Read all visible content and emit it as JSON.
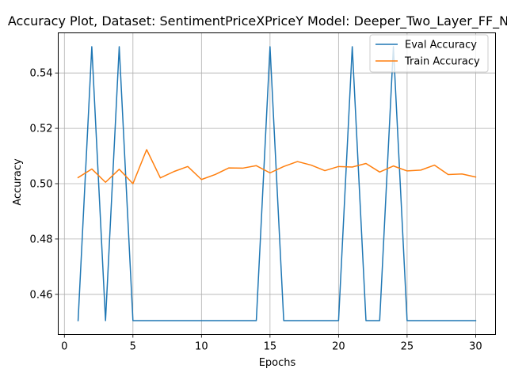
{
  "chart_data": {
    "type": "line",
    "title": "Accuracy Plot, Dataset: SentimentPriceXPriceY Model: Deeper_Two_Layer_FF_NN",
    "xlabel": "Epochs",
    "ylabel": "Accuracy",
    "xlim": [
      -0.45,
      31.45
    ],
    "ylim": [
      0.4455,
      0.5545
    ],
    "xticks": [
      0,
      5,
      10,
      15,
      20,
      25,
      30
    ],
    "yticks": [
      0.46,
      0.48,
      0.5,
      0.52,
      0.54
    ],
    "ytick_labels": [
      "0.46",
      "0.48",
      "0.50",
      "0.52",
      "0.54"
    ],
    "grid": true,
    "legend_position": "top-right",
    "x": [
      1,
      2,
      3,
      4,
      5,
      6,
      7,
      8,
      9,
      10,
      11,
      12,
      13,
      14,
      15,
      16,
      17,
      18,
      19,
      20,
      21,
      22,
      23,
      24,
      25,
      26,
      27,
      28,
      29,
      30
    ],
    "series": [
      {
        "name": "Eval Accuracy",
        "color": "#1f77b4",
        "values": [
          0.4505,
          0.5495,
          0.4505,
          0.5495,
          0.4505,
          0.4505,
          0.4505,
          0.4505,
          0.4505,
          0.4505,
          0.4505,
          0.4505,
          0.4505,
          0.4505,
          0.5495,
          0.4505,
          0.4505,
          0.4505,
          0.4505,
          0.4505,
          0.5495,
          0.4505,
          0.4505,
          0.5495,
          0.4505,
          0.4505,
          0.4505,
          0.4505,
          0.4505,
          0.4505
        ]
      },
      {
        "name": "Train Accuracy",
        "color": "#ff7f0e",
        "values": [
          0.5022,
          0.5053,
          0.5005,
          0.5052,
          0.5,
          0.5123,
          0.5021,
          0.5044,
          0.5062,
          0.5015,
          0.5033,
          0.5057,
          0.5056,
          0.5065,
          0.5039,
          0.5062,
          0.508,
          0.5067,
          0.5047,
          0.5062,
          0.506,
          0.5073,
          0.5042,
          0.5064,
          0.5046,
          0.5049,
          0.5067,
          0.5033,
          0.5035,
          0.5024
        ]
      }
    ]
  }
}
